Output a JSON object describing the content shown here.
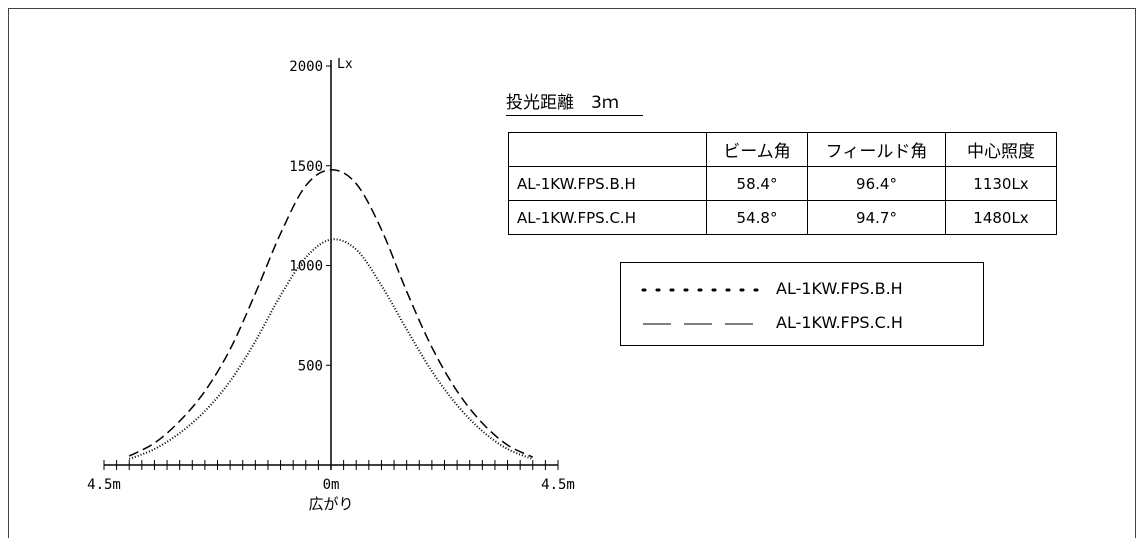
{
  "chart_data": {
    "type": "line",
    "title": "",
    "xlabel": "広がり",
    "ylabel": "Lx",
    "x_unit": "m",
    "xlim": [
      -4.5,
      4.5
    ],
    "ylim": [
      0,
      2000
    ],
    "y_ticks": [
      500,
      1000,
      1500,
      2000
    ],
    "x_tick_labels": [
      "4.5m",
      "0m",
      "4.5m"
    ],
    "grid": false,
    "legend_position": "right",
    "series": [
      {
        "name": "AL-1KW.FPS.B.H",
        "style": "dotted",
        "x": [
          -4.0,
          -3.5,
          -3.0,
          -2.5,
          -2.0,
          -1.5,
          -1.0,
          -0.5,
          0.0,
          0.5,
          1.0,
          1.5,
          2.0,
          2.5,
          3.0,
          3.5,
          4.0
        ],
        "values": [
          30,
          80,
          160,
          270,
          420,
          620,
          850,
          1040,
          1130,
          1080,
          900,
          680,
          470,
          300,
          170,
          80,
          30
        ]
      },
      {
        "name": "AL-1KW.FPS.C.H",
        "style": "dashed",
        "x": [
          -4.0,
          -3.5,
          -3.0,
          -2.5,
          -2.0,
          -1.5,
          -1.0,
          -0.5,
          0.0,
          0.5,
          1.0,
          1.5,
          2.0,
          2.5,
          3.0,
          3.5,
          4.0
        ],
        "values": [
          45,
          110,
          220,
          370,
          580,
          860,
          1160,
          1400,
          1480,
          1410,
          1180,
          870,
          590,
          370,
          210,
          100,
          40
        ]
      }
    ]
  },
  "distance_title": "投光距離　3ｍ",
  "spec_table": {
    "headers": [
      "",
      "ビーム角",
      "フィールド角",
      "中心照度"
    ],
    "rows": [
      [
        "AL-1KW.FPS.B.H",
        "58.4°",
        "96.4°",
        "1130Lx"
      ],
      [
        "AL-1KW.FPS.C.H",
        "54.8°",
        "94.7°",
        "1480Lx"
      ]
    ]
  },
  "legend": {
    "items": [
      {
        "label": "AL-1KW.FPS.B.H",
        "style": "dotted"
      },
      {
        "label": "AL-1KW.FPS.C.H",
        "style": "dashed"
      }
    ]
  }
}
